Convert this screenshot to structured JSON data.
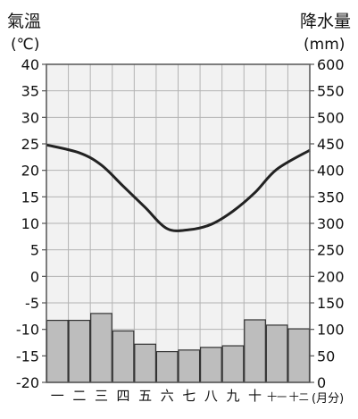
{
  "chart_data": {
    "type": "bar+line",
    "left_axis": {
      "title": "氣溫",
      "unit": "(℃)",
      "range": [
        -20,
        40
      ],
      "ticks": [
        -20,
        -15,
        -10,
        -5,
        0,
        5,
        10,
        15,
        20,
        25,
        30,
        35,
        40
      ]
    },
    "right_axis": {
      "title": "降水量",
      "unit": "(mm)",
      "range": [
        0,
        600
      ],
      "ticks": [
        0,
        50,
        100,
        150,
        200,
        250,
        300,
        350,
        400,
        450,
        500,
        550,
        600
      ]
    },
    "categories": [
      "一",
      "二",
      "三",
      "四",
      "五",
      "六",
      "七",
      "八",
      "九",
      "十",
      "十一",
      "十二"
    ],
    "x_unit": "(月分)",
    "precipitation": {
      "values": [
        117,
        117,
        130,
        97,
        72,
        58,
        61,
        66,
        69,
        118,
        108,
        101
      ]
    },
    "temperature": {
      "values": [
        24.8,
        23.3,
        21.0,
        17.0,
        13.0,
        9.0,
        8.8,
        9.8,
        12.3,
        15.8,
        20.2,
        23.8
      ]
    },
    "grid": true
  },
  "colors": {
    "bar_fill": "#bdbdbd",
    "bar_stroke": "#333333",
    "line": "#222222",
    "grid": "#b3b3b3",
    "plot_bg": "#f2f2f2"
  }
}
